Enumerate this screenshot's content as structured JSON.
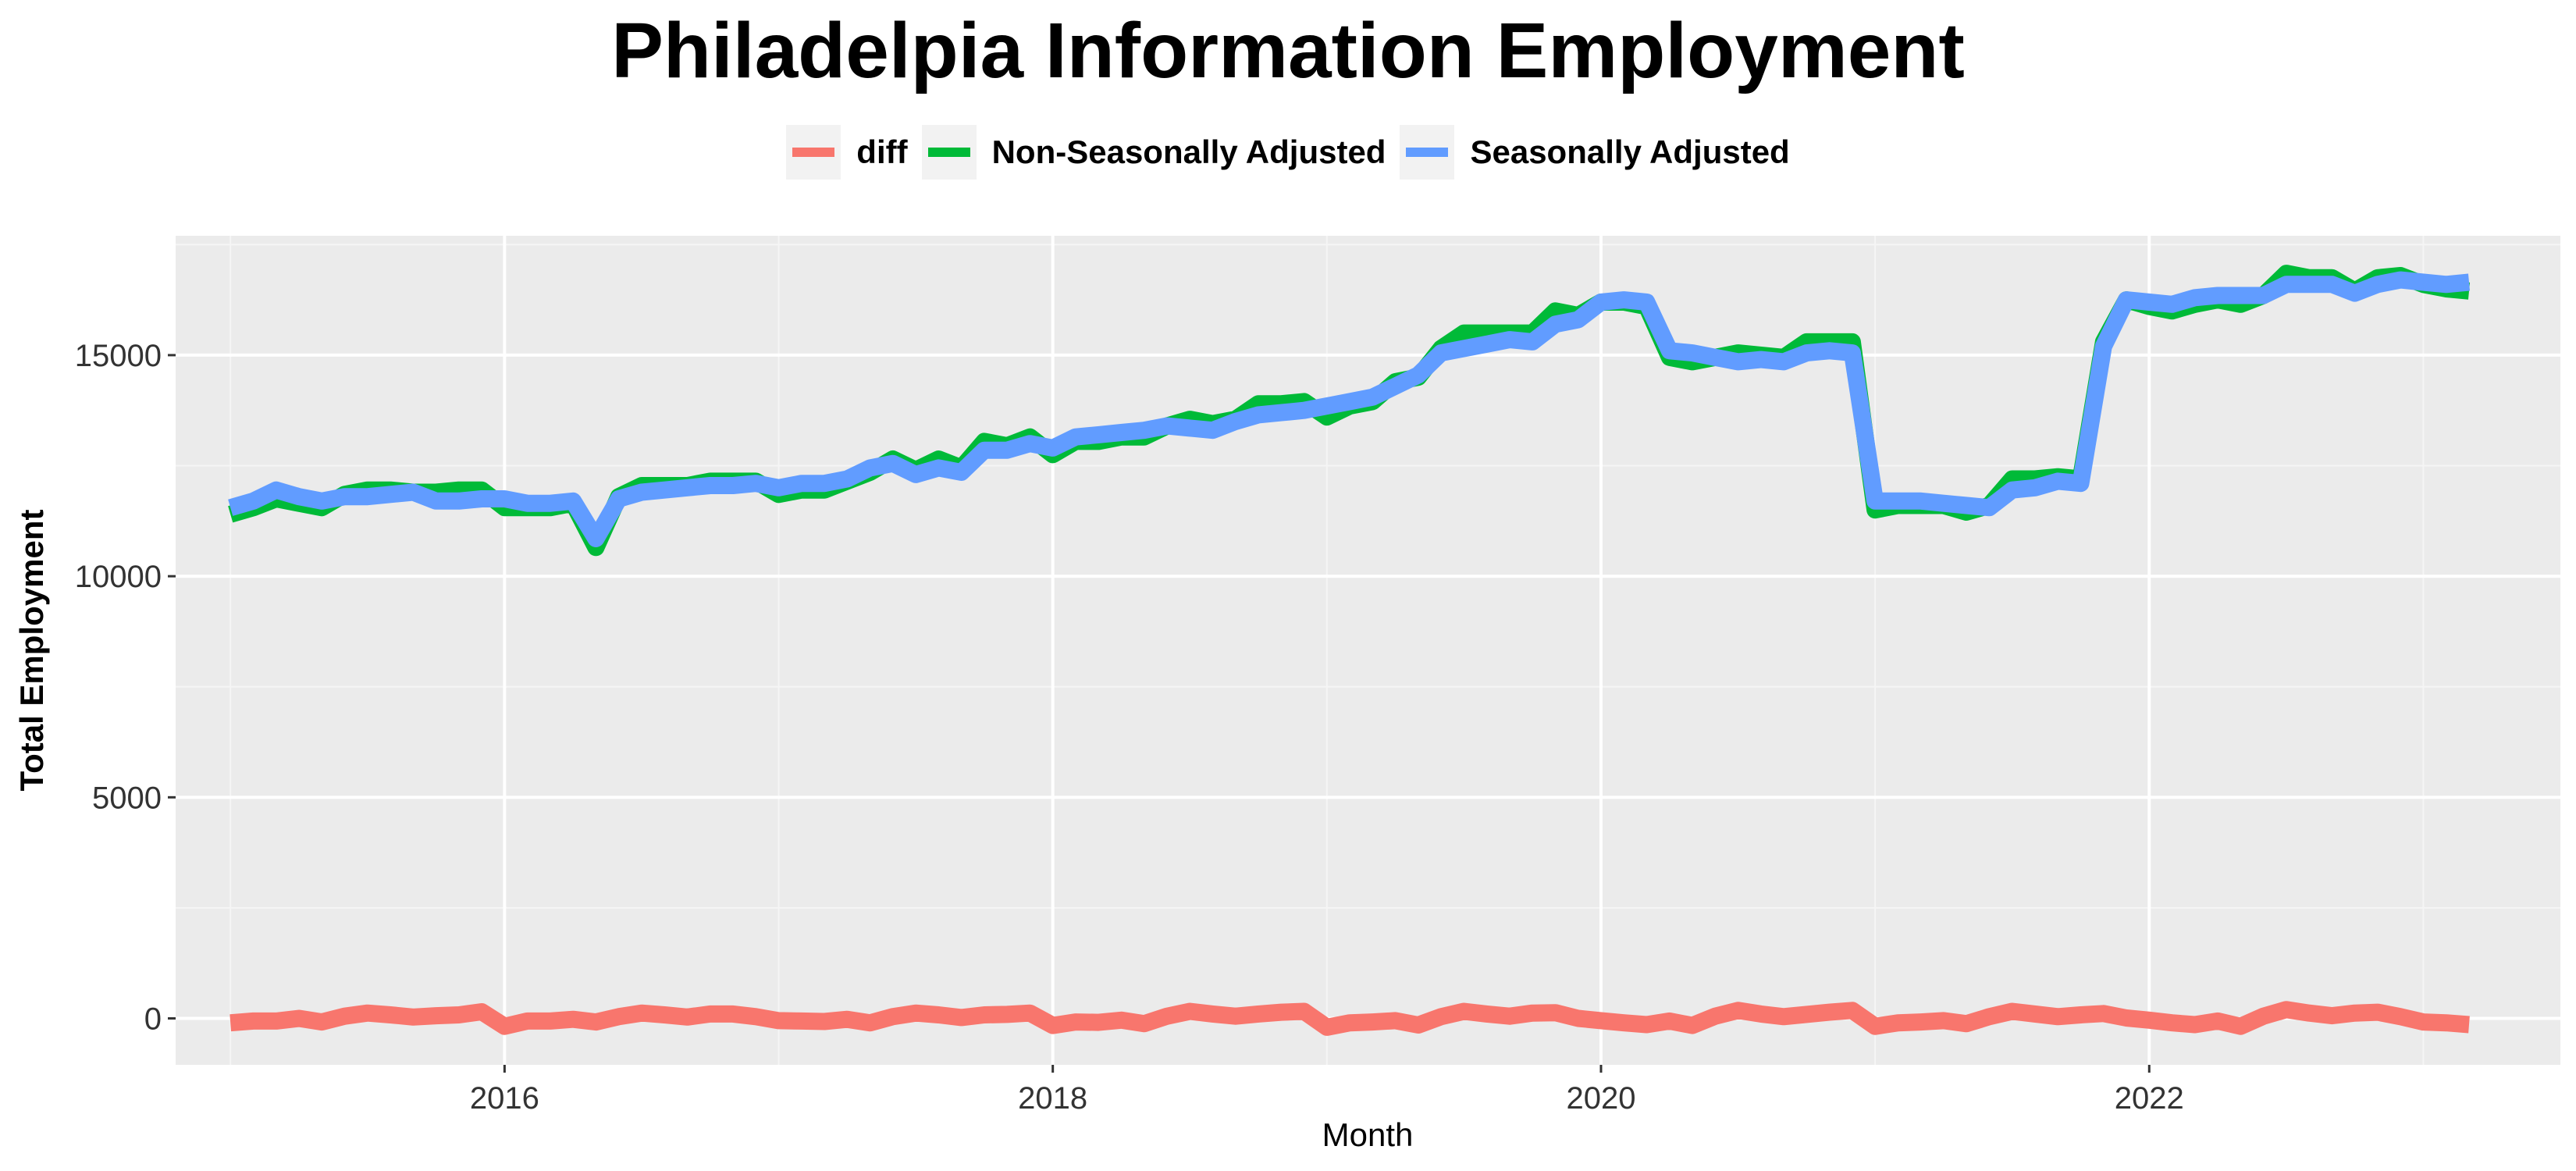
{
  "chart_data": {
    "type": "line",
    "title": "Philadelpia Information Employment",
    "xlabel": "Month",
    "ylabel": "Total Employment",
    "xlim": [
      2014.8,
      2023.5
    ],
    "ylim": [
      -1050,
      17700
    ],
    "x_ticks": [
      2016,
      2018,
      2020,
      2022
    ],
    "y_ticks": [
      0,
      5000,
      10000,
      15000
    ],
    "grid": true,
    "legend_position": "top",
    "x_start": "2015-01",
    "x_step": "month",
    "series": [
      {
        "name": "diff",
        "color": "#F8766D",
        "values": [
          -100,
          -60,
          -60,
          0,
          -80,
          50,
          120,
          80,
          30,
          60,
          80,
          150,
          -180,
          -60,
          -60,
          -20,
          -80,
          40,
          120,
          80,
          30,
          100,
          100,
          40,
          -50,
          -60,
          -70,
          -20,
          -100,
          40,
          120,
          80,
          20,
          80,
          90,
          120,
          -160,
          -80,
          -90,
          -40,
          -120,
          50,
          160,
          100,
          50,
          100,
          140,
          160,
          -200,
          -100,
          -80,
          -50,
          -150,
          40,
          160,
          100,
          50,
          120,
          130,
          0,
          -50,
          -100,
          -140,
          -60,
          -160,
          50,
          180,
          100,
          40,
          90,
          140,
          180,
          -180,
          -100,
          -80,
          -50,
          -120,
          40,
          160,
          100,
          40,
          80,
          110,
          10,
          -40,
          -100,
          -140,
          -60,
          -180,
          50,
          200,
          120,
          60,
          120,
          140,
          40,
          -80,
          -100,
          -140
        ]
      },
      {
        "name": "Non-Seasonally Adjusted",
        "color": "#00BA38",
        "values": [
          11400,
          11550,
          11750,
          11650,
          11550,
          11850,
          11950,
          11950,
          11900,
          11900,
          11950,
          11950,
          11550,
          11550,
          11550,
          11650,
          10650,
          11800,
          12050,
          12050,
          12050,
          12150,
          12150,
          12150,
          11850,
          11950,
          11950,
          12150,
          12350,
          12650,
          12400,
          12650,
          12450,
          13050,
          12950,
          13150,
          12750,
          13050,
          13050,
          13150,
          13150,
          13400,
          13550,
          13450,
          13550,
          13900,
          13900,
          13950,
          13600,
          13850,
          13950,
          14400,
          14500,
          15150,
          15500,
          15500,
          15500,
          15500,
          16000,
          15900,
          16200,
          16200,
          16100,
          14950,
          14850,
          14950,
          15050,
          15000,
          14950,
          15300,
          15300,
          15300,
          11500,
          11600,
          11600,
          11600,
          11450,
          11600,
          12200,
          12200,
          12250,
          12200,
          15300,
          16250,
          16100,
          16000,
          16150,
          16250,
          16150,
          16350,
          16850,
          16750,
          16750,
          16450,
          16750,
          16800,
          16600,
          16500,
          16450
        ]
      },
      {
        "name": "Seasonally Adjusted",
        "color": "#619CFF",
        "values": [
          11550,
          11700,
          11950,
          11800,
          11700,
          11800,
          11800,
          11850,
          11900,
          11700,
          11700,
          11750,
          11750,
          11650,
          11650,
          11700,
          10850,
          11750,
          11900,
          11950,
          12000,
          12050,
          12050,
          12100,
          12000,
          12100,
          12100,
          12200,
          12450,
          12550,
          12300,
          12450,
          12350,
          12850,
          12850,
          13000,
          12900,
          13150,
          13200,
          13250,
          13300,
          13400,
          13350,
          13300,
          13500,
          13650,
          13700,
          13750,
          13850,
          13950,
          14050,
          14300,
          14550,
          15050,
          15150,
          15250,
          15350,
          15300,
          15700,
          15800,
          16200,
          16250,
          16200,
          15100,
          15050,
          14950,
          14850,
          14900,
          14850,
          15050,
          15100,
          15050,
          11700,
          11700,
          11700,
          11650,
          11600,
          11550,
          11950,
          12000,
          12150,
          12100,
          15200,
          16250,
          16200,
          16150,
          16300,
          16350,
          16350,
          16350,
          16600,
          16600,
          16600,
          16400,
          16600,
          16700,
          16650,
          16600,
          16650
        ]
      }
    ]
  }
}
